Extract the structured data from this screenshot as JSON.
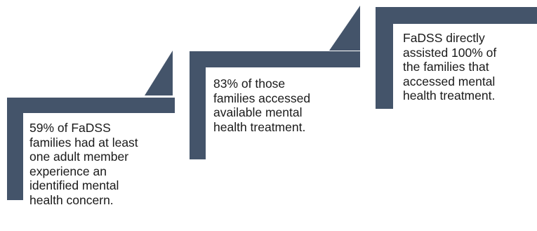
{
  "colors": {
    "accent": "#44546a",
    "text": "#1a1a1a",
    "background": "#ffffff"
  },
  "steps": [
    {
      "text": "59% of FaDSS\nfamilies had at least\none adult member\nexperience an\nidentified mental\nhealth concern."
    },
    {
      "text": "83% of those\nfamilies accessed\navailable mental\nhealth treatment."
    },
    {
      "text": "FaDSS directly\nassisted 100% of\nthe families that\naccessed mental\nhealth treatment."
    }
  ]
}
